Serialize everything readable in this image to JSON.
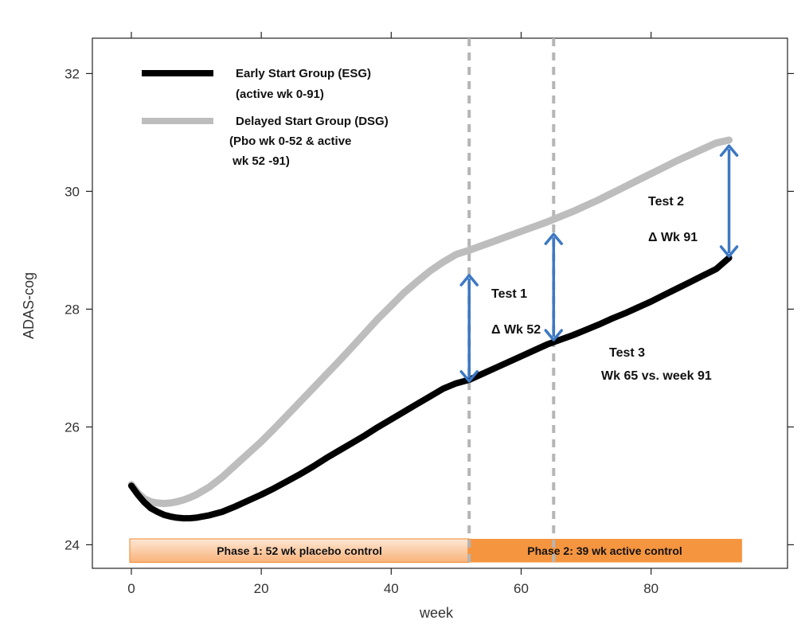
{
  "chart_data": {
    "type": "line",
    "xlabel": "week",
    "ylabel": "ADAS-cog",
    "xlim": [
      -6,
      101
    ],
    "ylim": [
      23.6,
      32.6
    ],
    "xticks": [
      0,
      20,
      40,
      60,
      80
    ],
    "yticks": [
      24,
      26,
      28,
      30,
      32
    ],
    "legend_position": "top-left",
    "series": [
      {
        "name": "Early Start Group (ESG)",
        "sublabel": "(active wk 0-91)",
        "color": "#000000",
        "x": [
          0,
          1,
          2,
          3,
          4,
          5,
          6,
          7,
          8,
          9,
          10,
          12,
          14,
          16,
          18,
          20,
          22,
          24,
          26,
          28,
          30,
          32,
          34,
          36,
          38,
          40,
          42,
          44,
          46,
          48,
          50,
          52,
          54,
          56,
          58,
          60,
          62,
          64,
          66,
          68,
          70,
          72,
          74,
          76,
          78,
          80,
          82,
          84,
          86,
          88,
          90,
          92
        ],
        "y": [
          25.0,
          24.85,
          24.72,
          24.62,
          24.56,
          24.51,
          24.48,
          24.46,
          24.45,
          24.45,
          24.46,
          24.5,
          24.56,
          24.65,
          24.75,
          24.85,
          24.96,
          25.08,
          25.2,
          25.33,
          25.47,
          25.6,
          25.73,
          25.86,
          26.0,
          26.13,
          26.26,
          26.39,
          26.52,
          26.65,
          26.74,
          26.8,
          26.9,
          27.0,
          27.1,
          27.2,
          27.3,
          27.4,
          27.48,
          27.56,
          27.65,
          27.74,
          27.84,
          27.93,
          28.03,
          28.13,
          28.24,
          28.35,
          28.46,
          28.57,
          28.68,
          28.87
        ]
      },
      {
        "name": "Delayed Start Group  (DSG)",
        "sublabel": [
          "(Pbo wk 0-52 & active",
          " wk 52 -91)"
        ],
        "color": "#bdbdbd",
        "x": [
          0,
          1,
          2,
          3,
          4,
          5,
          6,
          7,
          8,
          9,
          10,
          12,
          14,
          16,
          18,
          20,
          22,
          24,
          26,
          28,
          30,
          32,
          34,
          36,
          38,
          40,
          42,
          44,
          46,
          48,
          50,
          52,
          54,
          56,
          58,
          60,
          62,
          64,
          66,
          68,
          70,
          72,
          74,
          76,
          78,
          80,
          82,
          84,
          86,
          88,
          90,
          92
        ],
        "y": [
          25.02,
          24.88,
          24.78,
          24.73,
          24.71,
          24.7,
          24.71,
          24.73,
          24.76,
          24.8,
          24.85,
          24.98,
          25.15,
          25.35,
          25.55,
          25.75,
          25.97,
          26.2,
          26.43,
          26.66,
          26.89,
          27.12,
          27.36,
          27.6,
          27.84,
          28.06,
          28.28,
          28.47,
          28.65,
          28.8,
          28.93,
          29.0,
          29.08,
          29.16,
          29.24,
          29.32,
          29.4,
          29.48,
          29.57,
          29.66,
          29.76,
          29.86,
          29.97,
          30.08,
          30.19,
          30.3,
          30.41,
          30.52,
          30.62,
          30.72,
          30.82,
          30.87
        ]
      }
    ],
    "vertical_lines": [
      52,
      65
    ],
    "arrows": [
      {
        "x": 52,
        "y_from": 26.75,
        "y_to": 28.6
      },
      {
        "x": 65,
        "y_from": 27.45,
        "y_to": 29.3
      },
      {
        "x": 92,
        "y_from": 28.87,
        "y_to": 30.8
      }
    ],
    "annotations": [
      {
        "lines": [
          "Test 1",
          "Δ Wk 52"
        ]
      },
      {
        "lines": [
          "Test 2",
          "Δ Wk 91"
        ]
      },
      {
        "lines": [
          "Test 3",
          "Wk 65 vs. week 91"
        ]
      }
    ],
    "phases": [
      {
        "label": "Phase 1: 52 wk placebo control",
        "x_start": 0,
        "x_end": 52,
        "color": "#fbc99d"
      },
      {
        "label": "Phase 2: 39 wk active control",
        "x_start": 52,
        "x_end": 94,
        "color": "#f5953f"
      }
    ]
  }
}
